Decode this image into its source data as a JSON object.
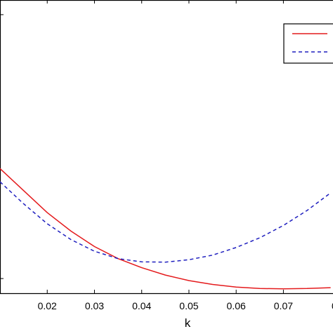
{
  "chart_data": {
    "type": "line",
    "title": "",
    "xlabel": "k",
    "ylabel": "",
    "xlim": [
      0.01,
      0.0805
    ],
    "ylim": [
      0,
      1
    ],
    "xticks": [
      0.02,
      0.03,
      0.04,
      0.05,
      0.06,
      0.07
    ],
    "xtick_labels": [
      "0.02",
      "0.03",
      "0.04",
      "0.05",
      "0.06",
      "0.07"
    ],
    "edge_tick_label_fragment": "0",
    "grid": false,
    "legend": {
      "position": "top-right",
      "entries": [
        {
          "style": "solid",
          "color": "#e41a1c"
        },
        {
          "style": "dashed",
          "color": "#1f1fbf"
        }
      ]
    },
    "series": [
      {
        "style": "solid",
        "color": "#e41a1c",
        "x": [
          0.01,
          0.015,
          0.02,
          0.025,
          0.03,
          0.035,
          0.04,
          0.045,
          0.05,
          0.055,
          0.06,
          0.065,
          0.07,
          0.075,
          0.08
        ],
        "y": [
          0.425,
          0.35,
          0.275,
          0.212,
          0.159,
          0.118,
          0.087,
          0.062,
          0.043,
          0.03,
          0.021,
          0.016,
          0.015,
          0.016,
          0.019
        ]
      },
      {
        "style": "dashed",
        "color": "#1f1fbf",
        "x": [
          0.01,
          0.015,
          0.02,
          0.025,
          0.03,
          0.035,
          0.04,
          0.045,
          0.05,
          0.055,
          0.06,
          0.065,
          0.07,
          0.075,
          0.08
        ],
        "y": [
          0.38,
          0.305,
          0.237,
          0.183,
          0.143,
          0.118,
          0.107,
          0.106,
          0.114,
          0.13,
          0.156,
          0.189,
          0.231,
          0.282,
          0.342
        ]
      }
    ]
  }
}
